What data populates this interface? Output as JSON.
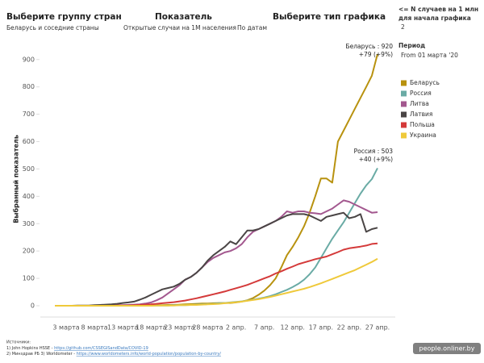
{
  "header": {
    "filters": [
      {
        "label": "Выберите группу стран",
        "value": "Беларусь и соседние страны"
      },
      {
        "label": "Показатель",
        "value": "Открытые случаи на 1М населения"
      },
      {
        "label": "Выберите тип графика",
        "value": "По датам"
      }
    ],
    "threshold": {
      "lines": [
        "<= N случаев на 1 млн",
        "для начала графика"
      ],
      "value": "2"
    },
    "period": {
      "label": "Период",
      "value": "From 01 марта '20"
    }
  },
  "chart_data": {
    "type": "line",
    "y_label": "Выбранный показатель",
    "categories": [
      null,
      null,
      "3 марта",
      null,
      null,
      null,
      null,
      "8 марта",
      null,
      null,
      null,
      null,
      "13 марта",
      null,
      null,
      null,
      null,
      "18 марта",
      null,
      null,
      null,
      null,
      "23 марта",
      null,
      null,
      null,
      null,
      "28 марта",
      null,
      null,
      null,
      null,
      "2 апр.",
      null,
      null,
      null,
      null,
      "7 апр.",
      null,
      null,
      null,
      null,
      "12 апр.",
      null,
      null,
      null,
      null,
      "17 апр.",
      null,
      null,
      null,
      null,
      "22 апр.",
      null,
      null,
      null,
      null,
      "27 апр."
    ],
    "ylim": [
      0,
      920
    ],
    "yticks": [
      0,
      100,
      200,
      300,
      400,
      500,
      600,
      700,
      800,
      900
    ],
    "grid": false,
    "series": [
      {
        "name": "Беларусь",
        "color": "#b8920f",
        "values": [
          0,
          0,
          0,
          0,
          0,
          0,
          0,
          0,
          0,
          0,
          0,
          0,
          0,
          0,
          0,
          1,
          1,
          1,
          2,
          2,
          3,
          3,
          4,
          5,
          6,
          7,
          8,
          8,
          9,
          10,
          10,
          10,
          12,
          15,
          20,
          28,
          40,
          55,
          75,
          100,
          140,
          185,
          215,
          250,
          290,
          340,
          400,
          465,
          465,
          450,
          600,
          640,
          680,
          720,
          760,
          800,
          841,
          920
        ]
      },
      {
        "name": "Россия",
        "color": "#6aaba5",
        "values": [
          0,
          0,
          0,
          0,
          0,
          0,
          0,
          0,
          0,
          0,
          0,
          0,
          0,
          0,
          0,
          0,
          1,
          1,
          1,
          1,
          1,
          2,
          2,
          2,
          3,
          4,
          5,
          6,
          7,
          9,
          10,
          12,
          14,
          16,
          19,
          22,
          26,
          30,
          35,
          42,
          50,
          58,
          68,
          80,
          95,
          115,
          140,
          175,
          210,
          245,
          275,
          305,
          340,
          375,
          410,
          440,
          463,
          503
        ]
      },
      {
        "name": "Литва",
        "color": "#a3588f",
        "values": [
          0,
          0,
          0,
          0,
          0,
          0,
          0,
          0,
          0,
          0,
          1,
          2,
          2,
          3,
          4,
          5,
          8,
          12,
          20,
          30,
          45,
          60,
          75,
          95,
          105,
          120,
          140,
          160,
          175,
          185,
          195,
          200,
          210,
          225,
          250,
          270,
          280,
          290,
          300,
          310,
          325,
          345,
          340,
          345,
          345,
          340,
          338,
          335,
          345,
          355,
          370,
          385,
          380,
          370,
          360,
          350,
          340,
          342
        ]
      },
      {
        "name": "Латвия",
        "color": "#4a4545",
        "values": [
          0,
          0,
          0,
          0,
          1,
          1,
          1,
          2,
          3,
          4,
          5,
          7,
          10,
          12,
          15,
          22,
          30,
          40,
          50,
          60,
          65,
          70,
          80,
          95,
          105,
          120,
          140,
          165,
          185,
          200,
          215,
          235,
          225,
          250,
          275,
          275,
          280,
          290,
          300,
          310,
          320,
          330,
          335,
          335,
          335,
          330,
          320,
          310,
          325,
          330,
          335,
          340,
          320,
          325,
          335,
          270,
          280,
          285
        ]
      },
      {
        "name": "Польша",
        "color": "#d43a3a",
        "values": [
          0,
          0,
          0,
          0,
          0,
          0,
          0,
          0,
          0,
          0,
          0,
          1,
          1,
          1,
          2,
          3,
          4,
          5,
          7,
          9,
          11,
          13,
          16,
          19,
          23,
          27,
          32,
          37,
          42,
          47,
          52,
          58,
          64,
          70,
          76,
          84,
          92,
          100,
          108,
          118,
          126,
          135,
          143,
          152,
          158,
          164,
          170,
          175,
          180,
          188,
          196,
          205,
          210,
          213,
          216,
          220,
          226,
          228
        ]
      },
      {
        "name": "Украина",
        "color": "#efc93a",
        "values": [
          0,
          0,
          0,
          0,
          0,
          0,
          0,
          0,
          0,
          0,
          0,
          0,
          0,
          0,
          0,
          0,
          0,
          0,
          1,
          1,
          1,
          1,
          2,
          2,
          3,
          3,
          4,
          5,
          6,
          7,
          9,
          11,
          13,
          15,
          18,
          21,
          24,
          28,
          32,
          37,
          42,
          47,
          52,
          57,
          62,
          68,
          75,
          82,
          90,
          98,
          106,
          114,
          122,
          130,
          140,
          150,
          160,
          172
        ]
      }
    ],
    "annotations": [
      {
        "lines": [
          "Беларусь : 920",
          "+79 (+9%)"
        ]
      },
      {
        "lines": [
          "Россия : 503",
          "+40 (+9%)"
        ]
      }
    ]
  },
  "sources": {
    "title": "Источники:",
    "line1": {
      "text": "1) John Hopkins HSSE - ",
      "url": "https://github.com/CSSEGISandData/COVID-19"
    },
    "line2": {
      "text": "2) Минздрав РБ     3) Worldometer - ",
      "url": "https://www.worldometers.info/world-population/population-by-country/"
    }
  },
  "watermark": "people.onliner.by"
}
